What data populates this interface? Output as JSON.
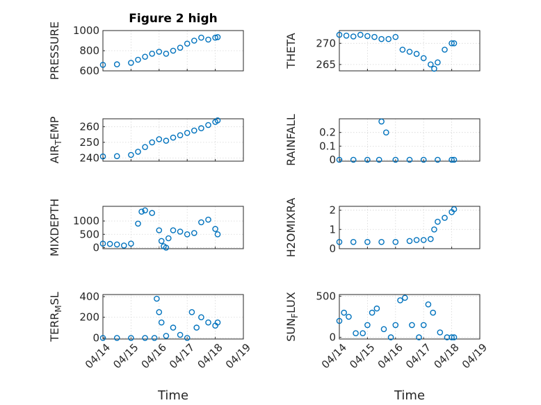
{
  "chart_data": [
    {
      "type": "scatter",
      "title": "Figure 2 high",
      "ylabel": "PRESSURE",
      "xlabel": "",
      "xlim": [
        "2024-04-14",
        "2024-04-19"
      ],
      "ylim": [
        600,
        1000
      ],
      "yticks": [
        600,
        800,
        1000
      ],
      "xtick_labels": [],
      "grid": true,
      "color": "#0072BD",
      "x": [
        "2024-04-14T00:00",
        "2024-04-14T12:00",
        "2024-04-15T00:00",
        "2024-04-15T06:00",
        "2024-04-15T12:00",
        "2024-04-15T18:00",
        "2024-04-16T00:00",
        "2024-04-16T06:00",
        "2024-04-16T12:00",
        "2024-04-16T18:00",
        "2024-04-17T00:00",
        "2024-04-17T06:00",
        "2024-04-17T12:00",
        "2024-04-17T18:00",
        "2024-04-18T00:00",
        "2024-04-18T02:00"
      ],
      "y": [
        660,
        665,
        680,
        710,
        740,
        770,
        790,
        770,
        800,
        830,
        870,
        900,
        930,
        910,
        930,
        935
      ]
    },
    {
      "type": "scatter",
      "title": "",
      "ylabel": "THETA",
      "xlabel": "",
      "xlim": [
        "2024-04-14",
        "2024-04-19"
      ],
      "ylim": [
        263.5,
        273
      ],
      "yticks": [
        265,
        270
      ],
      "xtick_labels": [],
      "grid": true,
      "color": "#0072BD",
      "x": [
        "2024-04-14T00:00",
        "2024-04-14T06:00",
        "2024-04-14T12:00",
        "2024-04-14T18:00",
        "2024-04-15T00:00",
        "2024-04-15T06:00",
        "2024-04-15T12:00",
        "2024-04-15T18:00",
        "2024-04-16T00:00",
        "2024-04-16T06:00",
        "2024-04-16T12:00",
        "2024-04-16T18:00",
        "2024-04-17T00:00",
        "2024-04-17T06:00",
        "2024-04-17T09:00",
        "2024-04-17T12:00",
        "2024-04-17T18:00",
        "2024-04-18T00:00",
        "2024-04-18T02:00"
      ],
      "y": [
        272,
        271.8,
        271.6,
        272,
        271.7,
        271.5,
        271,
        271,
        271.5,
        268.5,
        268,
        267.5,
        266.5,
        265,
        264,
        265.5,
        268.5,
        270,
        270
      ]
    },
    {
      "type": "scatter",
      "title": "",
      "ylabel": "AIR_TEMP",
      "xlabel": "",
      "xlim": [
        "2024-04-14",
        "2024-04-19"
      ],
      "ylim": [
        238,
        265
      ],
      "yticks": [
        240,
        250,
        260
      ],
      "xtick_labels": [],
      "grid": true,
      "color": "#0072BD",
      "x": [
        "2024-04-14T00:00",
        "2024-04-14T12:00",
        "2024-04-15T00:00",
        "2024-04-15T06:00",
        "2024-04-15T12:00",
        "2024-04-15T18:00",
        "2024-04-16T00:00",
        "2024-04-16T06:00",
        "2024-04-16T12:00",
        "2024-04-16T18:00",
        "2024-04-17T00:00",
        "2024-04-17T06:00",
        "2024-04-17T12:00",
        "2024-04-17T18:00",
        "2024-04-18T00:00",
        "2024-04-18T02:00"
      ],
      "y": [
        241,
        241.2,
        242,
        244,
        247,
        250,
        252,
        251,
        253,
        254.5,
        256,
        257.5,
        259,
        261,
        263,
        264
      ]
    },
    {
      "type": "scatter",
      "title": "",
      "ylabel": "RAINFALL",
      "xlabel": "",
      "xlim": [
        "2024-04-14",
        "2024-04-19"
      ],
      "ylim": [
        -0.01,
        0.3
      ],
      "yticks": [
        0,
        0.1,
        0.2
      ],
      "xtick_labels": [],
      "grid": true,
      "color": "#0072BD",
      "x": [
        "2024-04-14T00:00",
        "2024-04-14T12:00",
        "2024-04-15T00:00",
        "2024-04-15T10:00",
        "2024-04-15T12:00",
        "2024-04-15T16:00",
        "2024-04-16T00:00",
        "2024-04-16T12:00",
        "2024-04-17T00:00",
        "2024-04-17T12:00",
        "2024-04-18T00:00",
        "2024-04-18T02:00"
      ],
      "y": [
        0,
        0,
        0,
        0,
        0.28,
        0.2,
        0,
        0,
        0,
        0,
        0,
        0
      ]
    },
    {
      "type": "scatter",
      "title": "",
      "ylabel": "MIXDEPTH",
      "xlabel": "",
      "xlim": [
        "2024-04-14",
        "2024-04-19"
      ],
      "ylim": [
        -40,
        1550
      ],
      "yticks": [
        0,
        500,
        1000
      ],
      "xtick_labels": [],
      "grid": true,
      "color": "#0072BD",
      "x": [
        "2024-04-14T00:00",
        "2024-04-14T06:00",
        "2024-04-14T12:00",
        "2024-04-14T18:00",
        "2024-04-15T00:00",
        "2024-04-15T06:00",
        "2024-04-15T09:00",
        "2024-04-15T12:00",
        "2024-04-15T18:00",
        "2024-04-16T00:00",
        "2024-04-16T02:00",
        "2024-04-16T04:00",
        "2024-04-16T06:00",
        "2024-04-16T08:00",
        "2024-04-16T12:00",
        "2024-04-16T18:00",
        "2024-04-17T00:00",
        "2024-04-17T06:00",
        "2024-04-17T12:00",
        "2024-04-17T18:00",
        "2024-04-18T00:00",
        "2024-04-18T02:00"
      ],
      "y": [
        150,
        140,
        120,
        80,
        150,
        900,
        1350,
        1400,
        1300,
        650,
        250,
        50,
        0,
        350,
        650,
        600,
        500,
        550,
        950,
        1050,
        700,
        500
      ]
    },
    {
      "type": "scatter",
      "title": "",
      "ylabel": "H2OMIXRA",
      "xlabel": "",
      "xlim": [
        "2024-04-14",
        "2024-04-19"
      ],
      "ylim": [
        0,
        2.2
      ],
      "yticks": [
        0,
        1,
        2
      ],
      "xtick_labels": [],
      "grid": true,
      "color": "#0072BD",
      "x": [
        "2024-04-14T00:00",
        "2024-04-14T12:00",
        "2024-04-15T00:00",
        "2024-04-15T12:00",
        "2024-04-16T00:00",
        "2024-04-16T12:00",
        "2024-04-16T18:00",
        "2024-04-17T00:00",
        "2024-04-17T06:00",
        "2024-04-17T09:00",
        "2024-04-17T12:00",
        "2024-04-17T18:00",
        "2024-04-18T00:00",
        "2024-04-18T02:00"
      ],
      "y": [
        0.35,
        0.35,
        0.35,
        0.35,
        0.35,
        0.4,
        0.45,
        0.45,
        0.5,
        1.0,
        1.4,
        1.6,
        1.9,
        2.05
      ]
    },
    {
      "type": "scatter",
      "title": "",
      "ylabel": "TERR_MSL",
      "xlabel": "Time",
      "xlim": [
        "2024-04-14",
        "2024-04-19"
      ],
      "ylim": [
        -10,
        420
      ],
      "yticks": [
        0,
        200,
        400
      ],
      "xtick_labels": [
        "04/14",
        "04/15",
        "04/16",
        "04/17",
        "04/18",
        "04/19"
      ],
      "grid": true,
      "color": "#0072BD",
      "x": [
        "2024-04-14T00:00",
        "2024-04-14T12:00",
        "2024-04-15T00:00",
        "2024-04-15T12:00",
        "2024-04-15T20:00",
        "2024-04-15T22:00",
        "2024-04-16T00:00",
        "2024-04-16T02:00",
        "2024-04-16T06:00",
        "2024-04-16T12:00",
        "2024-04-16T18:00",
        "2024-04-17T00:00",
        "2024-04-17T04:00",
        "2024-04-17T08:00",
        "2024-04-17T12:00",
        "2024-04-17T18:00",
        "2024-04-18T00:00",
        "2024-04-18T02:00"
      ],
      "y": [
        0,
        0,
        0,
        0,
        0,
        380,
        250,
        150,
        20,
        100,
        30,
        0,
        250,
        100,
        200,
        150,
        120,
        150
      ]
    },
    {
      "type": "scatter",
      "title": "",
      "ylabel": "SUN_FLUX",
      "xlabel": "Time",
      "xlim": [
        "2024-04-14",
        "2024-04-19"
      ],
      "ylim": [
        -20,
        520
      ],
      "yticks": [
        0,
        500
      ],
      "xtick_labels": [
        "04/14",
        "04/15",
        "04/16",
        "04/17",
        "04/18",
        "04/19"
      ],
      "grid": true,
      "color": "#0072BD",
      "x": [
        "2024-04-14T00:00",
        "2024-04-14T04:00",
        "2024-04-14T08:00",
        "2024-04-14T14:00",
        "2024-04-14T20:00",
        "2024-04-15T00:00",
        "2024-04-15T04:00",
        "2024-04-15T08:00",
        "2024-04-15T14:00",
        "2024-04-15T20:00",
        "2024-04-16T00:00",
        "2024-04-16T04:00",
        "2024-04-16T08:00",
        "2024-04-16T14:00",
        "2024-04-16T20:00",
        "2024-04-17T00:00",
        "2024-04-17T04:00",
        "2024-04-17T08:00",
        "2024-04-17T14:00",
        "2024-04-17T20:00",
        "2024-04-18T00:00",
        "2024-04-18T02:00"
      ],
      "y": [
        200,
        300,
        250,
        50,
        50,
        150,
        300,
        350,
        100,
        0,
        150,
        450,
        480,
        150,
        0,
        150,
        400,
        300,
        60,
        0,
        0,
        0
      ]
    }
  ]
}
